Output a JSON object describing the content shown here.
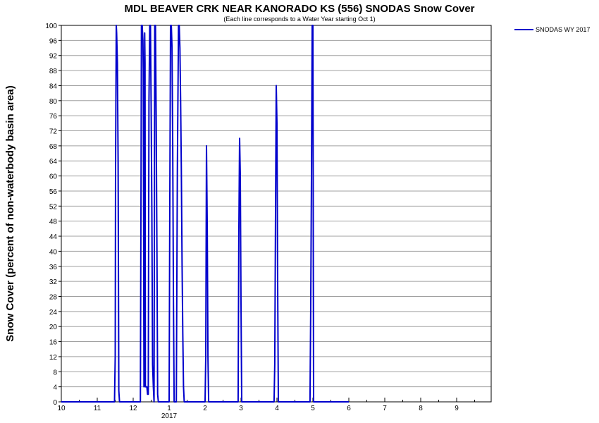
{
  "chart_data": {
    "type": "line",
    "title": "MDL BEAVER CRK NEAR KANORADO KS (556) SNODAS Snow Cover",
    "subtitle": "(Each line corresponds to a Water Year starting Oct 1)",
    "ylabel": "Snow Cover (percent of non-waterbody basin area)",
    "xlabel": "",
    "ylim": [
      0,
      100
    ],
    "yticks": [
      0,
      4,
      8,
      12,
      16,
      20,
      24,
      28,
      32,
      36,
      40,
      44,
      48,
      52,
      56,
      60,
      64,
      68,
      72,
      76,
      80,
      84,
      88,
      92,
      96,
      100
    ],
    "xlim": [
      0,
      11.5
    ],
    "xticks": [
      {
        "pos": 0,
        "label": "10"
      },
      {
        "pos": 1,
        "label": "11"
      },
      {
        "pos": 2,
        "label": "12"
      },
      {
        "pos": 3,
        "label": "1"
      },
      {
        "pos": 4,
        "label": "2"
      },
      {
        "pos": 5,
        "label": "3"
      },
      {
        "pos": 6,
        "label": "4"
      },
      {
        "pos": 7,
        "label": "5"
      },
      {
        "pos": 8,
        "label": "6"
      },
      {
        "pos": 9,
        "label": "7"
      },
      {
        "pos": 10,
        "label": "8"
      },
      {
        "pos": 11,
        "label": "9"
      }
    ],
    "year_label": {
      "pos": 3,
      "label": "2017"
    },
    "grid": true,
    "legend_position": "top-right-outside",
    "series": [
      {
        "name": "SNODAS WY 2017",
        "color": "#0000cc",
        "x": [
          0,
          1.48,
          1.5,
          1.51,
          1.53,
          1.54,
          1.56,
          1.58,
          1.6,
          1.62,
          2.2,
          2.22,
          2.23,
          2.25,
          2.27,
          2.28,
          2.3,
          2.31,
          2.32,
          2.33,
          2.34,
          2.36,
          2.38,
          2.4,
          2.42,
          2.44,
          2.46,
          2.48,
          2.5,
          2.52,
          2.54,
          2.56,
          2.58,
          2.6,
          2.62,
          2.64,
          2.66,
          2.68,
          2.7,
          2.72,
          2.74,
          2.76,
          2.78,
          3.0,
          3.02,
          3.04,
          3.06,
          3.08,
          3.1,
          3.12,
          3.14,
          3.2,
          3.23,
          3.26,
          3.28,
          3.3,
          3.32,
          3.34,
          3.36,
          3.38,
          3.4,
          3.42,
          3.44,
          3.46,
          3.48,
          3.52,
          3.56,
          3.6,
          3.64,
          3.68,
          3.7,
          3.72,
          3.74,
          3.76,
          3.8,
          4.0,
          4.02,
          4.04,
          4.06,
          4.08,
          4.1,
          4.12,
          4.14,
          4.16,
          4.18,
          4.9,
          4.92,
          4.94,
          4.96,
          4.98,
          5.0,
          5.02,
          5.04,
          5.06,
          5.08,
          5.92,
          5.94,
          5.96,
          5.98,
          6.0,
          6.02,
          6.04,
          6.06,
          6.08,
          6.9,
          6.92,
          6.94,
          6.96,
          6.98,
          7.0,
          7.02,
          7.04,
          7.06,
          7.08,
          8.0
        ],
        "y": [
          0,
          0,
          12,
          62,
          100,
          98,
          90,
          64,
          3,
          0,
          0,
          62,
          100,
          100,
          96,
          88,
          4,
          70,
          98,
          90,
          4,
          4,
          4,
          2,
          2,
          80,
          100,
          100,
          78,
          50,
          10,
          4,
          0,
          100,
          100,
          76,
          40,
          2,
          0,
          0,
          0,
          0,
          0,
          0,
          54,
          100,
          100,
          94,
          68,
          28,
          0,
          0,
          62,
          100,
          100,
          94,
          80,
          62,
          36,
          18,
          4,
          0,
          0,
          0,
          0,
          0,
          0,
          0,
          0,
          0,
          0,
          0,
          0,
          0,
          0,
          0,
          12,
          68,
          46,
          12,
          0,
          0,
          0,
          0,
          0,
          0,
          0,
          44,
          70,
          60,
          26,
          0,
          0,
          0,
          0,
          0,
          10,
          50,
          84,
          74,
          32,
          0,
          0,
          0,
          0,
          0,
          24,
          60,
          100,
          100,
          0,
          0,
          0,
          0,
          0
        ]
      }
    ]
  }
}
